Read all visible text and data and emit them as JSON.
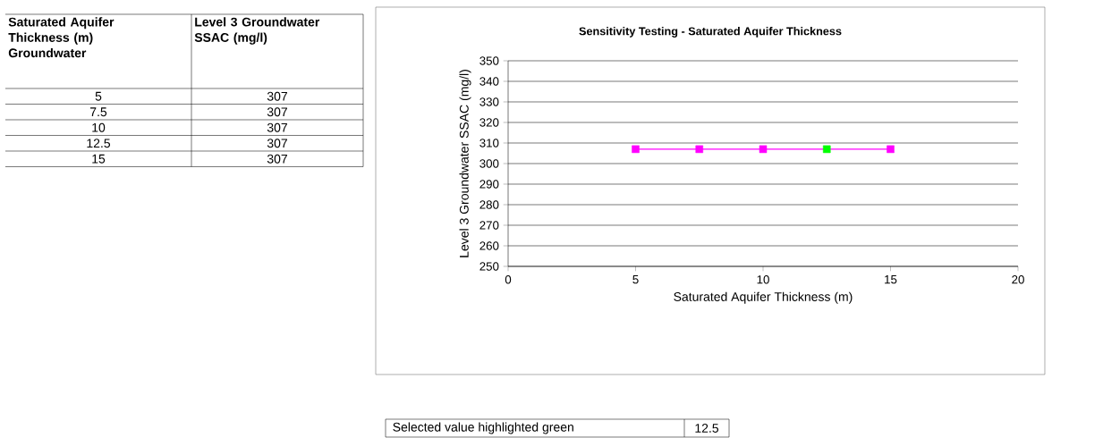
{
  "chart_data": {
    "type": "line",
    "title": "Sensitivity Testing - Saturated Aquifer Thickness",
    "xlabel": "Saturated Aquifer Thickness (m)",
    "ylabel": "Level 3 Groundwater SSAC (mg/l)",
    "x": [
      5,
      7.5,
      10,
      12.5,
      15
    ],
    "series": [
      {
        "color": "#ff00ff",
        "colors": [
          "#ff00ff",
          "#ff00ff",
          "#ff00ff",
          "#00ff00",
          "#ff00ff"
        ],
        "values": [
          307,
          307,
          307,
          307,
          307
        ]
      }
    ],
    "xlim": [
      0,
      20
    ],
    "xticks": [
      0,
      5,
      10,
      15,
      20
    ],
    "ylim": [
      250,
      350
    ],
    "yticks": [
      250,
      260,
      270,
      280,
      290,
      300,
      310,
      320,
      330,
      340,
      350
    ],
    "grid": "y",
    "marker": "square",
    "line_style": "solid",
    "annotations": [
      "Saturated Aquifer Thickness (m) Groundwater",
      "Level 3 Groundwater SSAC (mg/l)",
      "5",
      "307",
      "7.5",
      "307",
      "10",
      "307",
      "12.5",
      "307",
      "15",
      "307",
      "Selected value highlighted green",
      "12.5"
    ]
  }
}
